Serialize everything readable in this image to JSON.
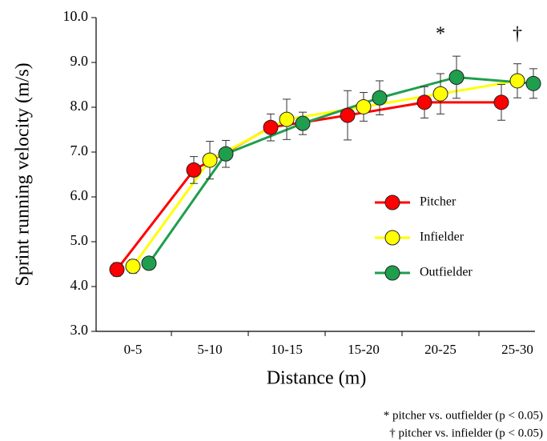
{
  "chart_data": {
    "type": "line",
    "x_label": "Distance (m)",
    "y_label": "Sprint  running velocity (m/s)",
    "categories": [
      "0-5",
      "5-10",
      "10-15",
      "15-20",
      "20-25",
      "25-30"
    ],
    "series": [
      {
        "name": "Pitcher",
        "color": "#ff0000",
        "values": [
          4.38,
          6.6,
          7.55,
          7.82,
          8.11,
          8.11
        ],
        "errors": [
          0.15,
          0.3,
          0.3,
          0.55,
          0.35,
          0.4
        ]
      },
      {
        "name": "Infielder",
        "color": "#ffff00",
        "values": [
          4.45,
          6.82,
          7.73,
          8.01,
          8.3,
          8.59
        ],
        "errors": [
          0.15,
          0.42,
          0.45,
          0.32,
          0.45,
          0.38
        ]
      },
      {
        "name": "Outfielder",
        "color": "#1f9e4d",
        "values": [
          4.52,
          6.96,
          7.64,
          8.21,
          8.67,
          8.53
        ],
        "errors": [
          0.05,
          0.3,
          0.25,
          0.38,
          0.47,
          0.33
        ]
      }
    ],
    "ylim": [
      3,
      10
    ],
    "yticks": [
      {
        "value": 3,
        "label": "3.0"
      },
      {
        "value": 4,
        "label": "4.0"
      },
      {
        "value": 5,
        "label": "5.0"
      },
      {
        "value": 6,
        "label": "6.0"
      },
      {
        "value": 7,
        "label": "7.0"
      },
      {
        "value": 8,
        "label": "8.0"
      },
      {
        "value": 9,
        "label": "9.0"
      },
      {
        "value": 10,
        "label": "10.0"
      }
    ],
    "annotations": [
      {
        "text": "*",
        "category": "20-25"
      },
      {
        "text": "†",
        "category": "25-30"
      }
    ],
    "footnotes": [
      "* pitcher vs. outfielder (p < 0.05)",
      "† pitcher vs. infielder (p < 0.05)"
    ],
    "legend": "right"
  }
}
